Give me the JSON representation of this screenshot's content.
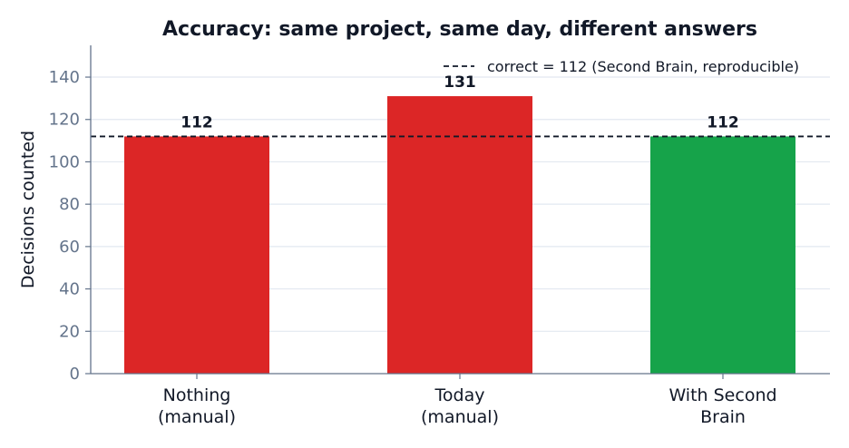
{
  "chart_data": {
    "type": "bar",
    "title": "Accuracy: same project, same day, different answers",
    "xlabel": "",
    "ylabel": "Decisions counted",
    "ylim": [
      0,
      155
    ],
    "yticks": [
      0,
      20,
      40,
      60,
      80,
      100,
      120,
      140
    ],
    "grid": "horizontal",
    "legend_placement": "top-right",
    "categories": [
      [
        "Nothing",
        "(manual)"
      ],
      [
        "Today",
        "(manual)"
      ],
      [
        "With Second",
        "Brain"
      ]
    ],
    "values": [
      112,
      131,
      112
    ],
    "data_labels": [
      "112",
      "131",
      "112"
    ],
    "bar_colors": [
      "#dc2626",
      "#dc2626",
      "#16a34a"
    ],
    "reference_line": {
      "value": 112,
      "label": "correct = 112 (Second Brain, reproducible)",
      "color": "#111827",
      "style": "dashed"
    },
    "colors": {
      "axis": "#64748b",
      "grid": "#e2e8f0",
      "text": "#111827",
      "tick": "#64748b"
    }
  }
}
